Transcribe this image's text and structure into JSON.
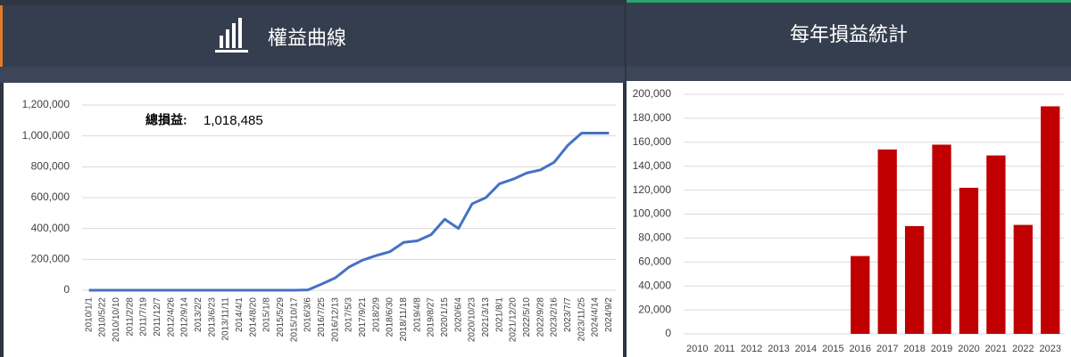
{
  "panels": [
    {
      "title": "權益曲線"
    },
    {
      "title": "每年損益統計"
    }
  ],
  "chart_data": [
    {
      "type": "line",
      "color": "#4472c4",
      "grid": true,
      "annotation": {
        "label": "總損益:",
        "value": "1,018,485"
      },
      "categories": [
        "2010/1/1",
        "2010/5/22",
        "2010/10/10",
        "2011/2/28",
        "2011/7/19",
        "2011/12/7",
        "2012/4/26",
        "2012/9/14",
        "2013/2/2",
        "2013/6/23",
        "2013/11/11",
        "2014/4/1",
        "2014/8/20",
        "2015/1/8",
        "2015/5/29",
        "2015/10/17",
        "2016/3/6",
        "2016/7/25",
        "2016/12/13",
        "2017/5/3",
        "2017/9/21",
        "2018/2/9",
        "2018/6/30",
        "2018/11/18",
        "2019/4/8",
        "2019/8/27",
        "2020/1/15",
        "2020/6/4",
        "2020/10/23",
        "2021/3/13",
        "2021/8/1",
        "2021/12/20",
        "2022/5/10",
        "2022/9/28",
        "2023/2/16",
        "2023/7/7",
        "2023/11/25",
        "2024/4/14",
        "2024/9/2"
      ],
      "values": [
        0,
        0,
        0,
        0,
        0,
        0,
        0,
        0,
        0,
        0,
        0,
        0,
        0,
        0,
        0,
        0,
        2000,
        40000,
        80000,
        150000,
        195000,
        225000,
        250000,
        310000,
        320000,
        360000,
        460000,
        400000,
        560000,
        600000,
        690000,
        720000,
        760000,
        780000,
        830000,
        940000,
        1018485,
        1018485,
        1018485
      ],
      "ylim": [
        0,
        1200000
      ],
      "yticks": [
        0,
        {
          "value": 200000,
          "label": "200,000"
        },
        {
          "value": 400000,
          "label": "400,000"
        },
        {
          "value": 600000,
          "label": "600,000"
        },
        {
          "value": 800000,
          "label": "800,000"
        },
        {
          "value": 1000000,
          "label": "1,000,000"
        },
        {
          "value": 1200000,
          "label": "1,200,000"
        }
      ]
    },
    {
      "type": "bar",
      "color": "#c00000",
      "grid": true,
      "categories": [
        "2010",
        "2011",
        "2012",
        "2013",
        "2014",
        "2015",
        "2016",
        "2017",
        "2018",
        "2019",
        "2020",
        "2021",
        "2022",
        "2023"
      ],
      "values": [
        0,
        0,
        0,
        0,
        0,
        0,
        65000,
        154000,
        90000,
        158000,
        122000,
        149000,
        91000,
        190000
      ],
      "ylim": [
        0,
        200000
      ],
      "yticks": [
        0,
        {
          "value": 20000,
          "label": "20,000"
        },
        {
          "value": 40000,
          "label": "40,000"
        },
        {
          "value": 60000,
          "label": "60,000"
        },
        {
          "value": 80000,
          "label": "80,000"
        },
        {
          "value": 100000,
          "label": "100,000"
        },
        {
          "value": 120000,
          "label": "120,000"
        },
        {
          "value": 140000,
          "label": "140,000"
        },
        {
          "value": 160000,
          "label": "160,000"
        },
        {
          "value": 180000,
          "label": "180,000"
        },
        {
          "value": 200000,
          "label": "200,000"
        }
      ]
    }
  ]
}
